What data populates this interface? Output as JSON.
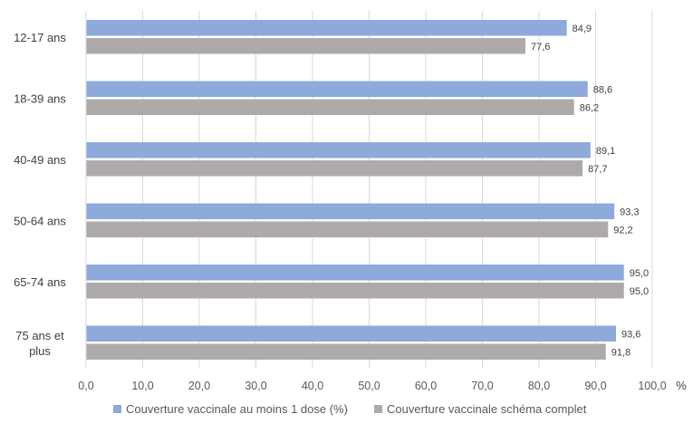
{
  "chart_data": {
    "type": "bar",
    "orientation": "horizontal",
    "categories": [
      "12-17 ans",
      "18-39 ans",
      "40-49 ans",
      "50-64 ans",
      "65-74 ans",
      "75 ans et plus"
    ],
    "category_lines": [
      [
        "12-17 ans"
      ],
      [
        "18-39 ans"
      ],
      [
        "40-49 ans"
      ],
      [
        "50-64 ans"
      ],
      [
        "65-74 ans"
      ],
      [
        "75 ans et",
        "plus"
      ]
    ],
    "series": [
      {
        "name": "Couverture vaccinale au moins 1 dose (%)",
        "color": "#8eaadb",
        "values": [
          84.9,
          88.6,
          89.1,
          93.3,
          95.0,
          93.6
        ],
        "labels": [
          "84,9",
          "88,6",
          "89,1",
          "93,3",
          "95,0",
          "93,6"
        ]
      },
      {
        "name": "Couverture vaccinale schéma complet",
        "color": "#aeaaaa",
        "values": [
          77.6,
          86.2,
          87.7,
          92.2,
          95.0,
          91.8
        ],
        "labels": [
          "77,6",
          "86,2",
          "87,7",
          "92,2",
          "95,0",
          "91,8"
        ]
      }
    ],
    "xlim": [
      0,
      100
    ],
    "xticks": [
      0,
      10,
      20,
      30,
      40,
      50,
      60,
      70,
      80,
      90,
      100
    ],
    "xtick_labels": [
      "0,0",
      "10,0",
      "20,0",
      "30,0",
      "40,0",
      "50,0",
      "60,0",
      "70,0",
      "80,0",
      "90,0",
      "100,0"
    ],
    "x_unit": "%",
    "grid": "vertical",
    "grid_color": "#d9d9d9",
    "legend_position": "bottom"
  }
}
